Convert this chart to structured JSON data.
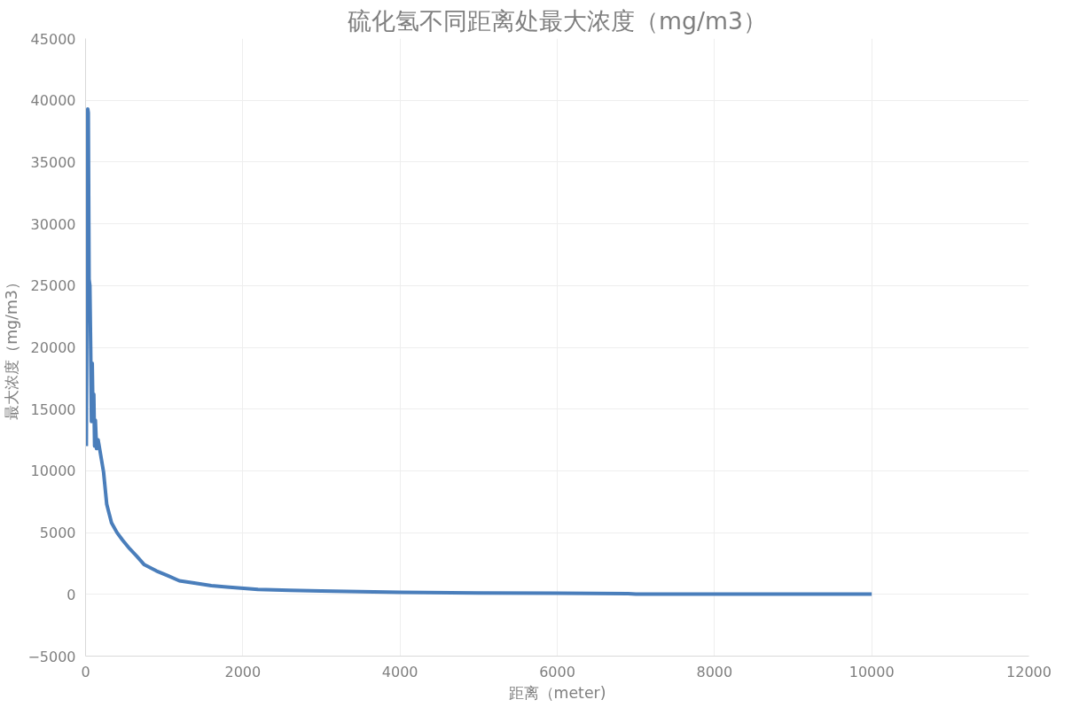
{
  "chart_data": {
    "type": "line",
    "title": "硫化氢不同距离处最大浓度（mg/m3）",
    "xlabel": "距离（meter)",
    "ylabel": "最大浓度（mg/m3）",
    "x": [
      10,
      20,
      28,
      35,
      45,
      55,
      65,
      75,
      85,
      95,
      105,
      115,
      125,
      140,
      160,
      200,
      229,
      269,
      330,
      400,
      470,
      560,
      650,
      747,
      900,
      1050,
      1193,
      1400,
      1600,
      1795,
      2193,
      2600,
      3000,
      3500,
      4000,
      5000,
      6000,
      6900,
      7000,
      8000,
      9000,
      10000
    ],
    "series": [
      {
        "color": "#4a7ebb",
        "values": [
          12000,
          30000,
          39300,
          39000,
          25500,
          25000,
          20000,
          14000,
          18700,
          14500,
          16200,
          12000,
          14100,
          11800,
          12500,
          11000,
          9900,
          7300,
          5800,
          5000,
          4400,
          3700,
          3100,
          2400,
          1900,
          1500,
          1100,
          900,
          700,
          600,
          400,
          320,
          280,
          220,
          170,
          110,
          90,
          60,
          20,
          20,
          20,
          20
        ]
      }
    ],
    "xlim": [
      0,
      12000
    ],
    "xticks": [
      0,
      2000,
      4000,
      6000,
      8000,
      10000,
      12000
    ],
    "ylim": [
      -5000,
      45000
    ],
    "yticks": [
      -5000,
      0,
      5000,
      10000,
      15000,
      20000,
      25000,
      30000,
      35000,
      40000,
      45000
    ],
    "grid": true,
    "marker": "none",
    "line_style": "solid"
  }
}
